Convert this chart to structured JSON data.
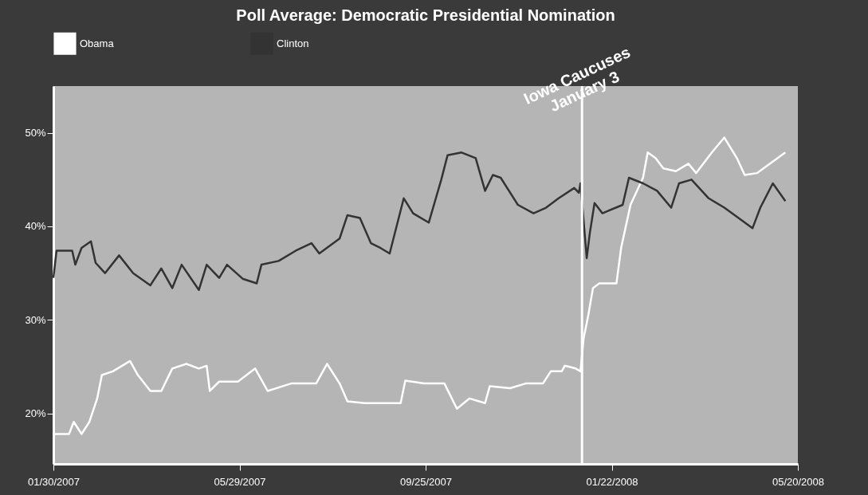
{
  "chart_data": {
    "type": "line",
    "title": "Poll Average: Democratic Presidential Nomination",
    "xlim": [
      "2007-01-30",
      "2008-05-20"
    ],
    "xticks": [
      {
        "value": "2007-01-30",
        "label": "01/30/2007"
      },
      {
        "value": "2007-05-29",
        "label": "05/29/2007"
      },
      {
        "value": "2007-09-25",
        "label": "09/25/2007"
      },
      {
        "value": "2008-01-22",
        "label": "01/22/2008"
      },
      {
        "value": "2008-05-20",
        "label": "05/20/2008"
      }
    ],
    "ylim": [
      14.6,
      55
    ],
    "yticks": [
      {
        "value": 20,
        "label": "20%"
      },
      {
        "value": 30,
        "label": "30%"
      },
      {
        "value": 40,
        "label": "40%"
      },
      {
        "value": 50,
        "label": "50%"
      }
    ],
    "grid": false,
    "legend": "top left",
    "marker": "none",
    "line_style": "solid",
    "ref_lines": [
      {
        "axis": "x",
        "value": "2008-01-03",
        "label": "Iowa Caucuses\nJanuary 3",
        "color": "#ffffff"
      }
    ],
    "series": [
      {
        "name": "Obama",
        "color": "#ffffff",
        "x": [
          "2007-01-30",
          "2007-02-09",
          "2007-02-12",
          "2007-02-17",
          "2007-02-22",
          "2007-02-27",
          "2007-03-02",
          "2007-03-09",
          "2007-03-20",
          "2007-03-25",
          "2007-04-02",
          "2007-04-09",
          "2007-04-16",
          "2007-04-25",
          "2007-05-03",
          "2007-05-08",
          "2007-05-10",
          "2007-05-16",
          "2007-05-28",
          "2007-06-08",
          "2007-06-16",
          "2007-07-01",
          "2007-07-17",
          "2007-07-24",
          "2007-08-01",
          "2007-08-06",
          "2007-08-17",
          "2007-08-27",
          "2007-09-09",
          "2007-09-12",
          "2007-09-24",
          "2007-10-07",
          "2007-10-15",
          "2007-10-23",
          "2007-11-02",
          "2007-11-05",
          "2007-11-18",
          "2007-11-28",
          "2007-12-09",
          "2007-12-14",
          "2007-12-21",
          "2007-12-23",
          "2007-12-30",
          "2008-01-02",
          "2008-01-04",
          "2008-01-07",
          "2008-01-10",
          "2008-01-14",
          "2008-01-25",
          "2008-01-28",
          "2008-02-03",
          "2008-02-11",
          "2008-02-14",
          "2008-02-19",
          "2008-02-24",
          "2008-03-03",
          "2008-03-11",
          "2008-03-16",
          "2008-03-26",
          "2008-04-03",
          "2008-04-11",
          "2008-04-16",
          "2008-04-24",
          "2008-05-12"
        ],
        "values": [
          17.8,
          17.8,
          19.1,
          17.8,
          19.1,
          21.6,
          24.1,
          24.5,
          25.6,
          24.1,
          22.4,
          22.4,
          24.8,
          25.3,
          24.8,
          25.1,
          22.4,
          23.4,
          23.4,
          24.8,
          22.4,
          23.2,
          23.2,
          25.3,
          23.2,
          21.3,
          21.1,
          21.1,
          21.1,
          23.5,
          23.2,
          23.2,
          20.5,
          21.6,
          21.1,
          22.9,
          22.7,
          23.2,
          23.2,
          24.5,
          24.5,
          25.1,
          24.8,
          24.5,
          28.0,
          30.5,
          33.4,
          33.9,
          33.9,
          37.7,
          42.3,
          45.2,
          47.9,
          47.3,
          46.2,
          45.9,
          46.7,
          45.7,
          47.9,
          49.5,
          47.3,
          45.5,
          45.7,
          47.9
        ]
      },
      {
        "name": "Clinton",
        "color": "#333333",
        "x": [
          "2007-01-30",
          "2007-02-01",
          "2007-02-11",
          "2007-02-13",
          "2007-02-17",
          "2007-02-23",
          "2007-02-26",
          "2007-03-04",
          "2007-03-13",
          "2007-03-22",
          "2007-04-02",
          "2007-04-09",
          "2007-04-16",
          "2007-04-22",
          "2007-05-03",
          "2007-05-08",
          "2007-05-16",
          "2007-05-21",
          "2007-05-31",
          "2007-06-09",
          "2007-06-12",
          "2007-06-23",
          "2007-07-04",
          "2007-07-14",
          "2007-07-19",
          "2007-08-01",
          "2007-08-06",
          "2007-08-14",
          "2007-08-21",
          "2007-08-27",
          "2007-09-02",
          "2007-09-11",
          "2007-09-17",
          "2007-09-27",
          "2007-10-05",
          "2007-10-09",
          "2007-10-18",
          "2007-10-27",
          "2007-11-02",
          "2007-11-07",
          "2007-11-12",
          "2007-11-23",
          "2007-12-03",
          "2007-12-11",
          "2007-12-19",
          "2007-12-29",
          "2008-01-01",
          "2008-01-02",
          "2008-01-06",
          "2008-01-08",
          "2008-01-11",
          "2008-01-16",
          "2008-01-29",
          "2008-02-02",
          "2008-02-11",
          "2008-02-20",
          "2008-02-29",
          "2008-03-05",
          "2008-03-13",
          "2008-03-24",
          "2008-04-03",
          "2008-04-21",
          "2008-04-26",
          "2008-05-04",
          "2008-05-12"
        ],
        "values": [
          34.5,
          37.4,
          37.4,
          35.9,
          37.7,
          38.4,
          36.1,
          35.0,
          36.9,
          35.0,
          33.7,
          35.5,
          33.4,
          35.9,
          33.2,
          35.9,
          34.5,
          35.9,
          34.4,
          33.9,
          35.9,
          36.3,
          37.4,
          38.2,
          37.1,
          38.7,
          41.2,
          40.9,
          38.2,
          37.7,
          37.1,
          43.0,
          41.4,
          40.4,
          45.0,
          47.6,
          47.9,
          47.3,
          43.8,
          45.5,
          45.2,
          42.3,
          41.4,
          42.0,
          43.0,
          44.1,
          43.6,
          44.6,
          36.6,
          39.3,
          42.5,
          41.4,
          42.3,
          45.2,
          44.6,
          43.8,
          42.0,
          44.6,
          45.0,
          43.0,
          42.0,
          39.8,
          42.0,
          44.6,
          42.7
        ]
      }
    ]
  }
}
